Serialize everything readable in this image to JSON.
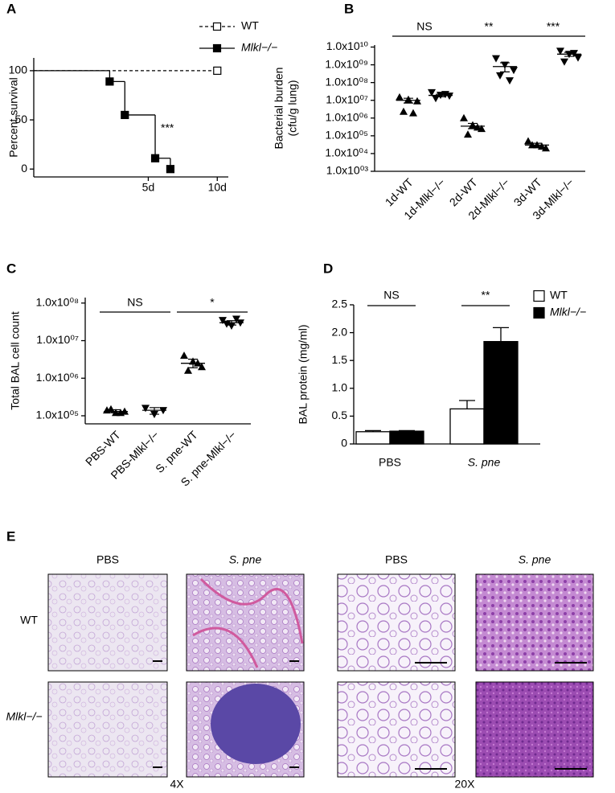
{
  "chart_data": [
    {
      "type": "line",
      "step": true,
      "panel": "A",
      "ylabel": "Percent survival",
      "xlim": [
        -3.3,
        10.8
      ],
      "xticks": [
        {
          "value": 5,
          "label": "5d"
        },
        {
          "value": 10,
          "label": "10d"
        }
      ],
      "ylim": [
        -8,
        113
      ],
      "yticks": [
        0,
        50,
        100
      ],
      "series": [
        {
          "name": "WT",
          "color": "#000000",
          "dash": true,
          "marker": "open-square",
          "x": [
            -3.3,
            10
          ],
          "values": [
            100,
            100
          ]
        },
        {
          "name": "Mlkl−/−",
          "color": "#000000",
          "dash": false,
          "marker": "filled-square",
          "x": [
            -3.3,
            2.2,
            3.3,
            5.5,
            6.6
          ],
          "values": [
            100,
            89,
            55,
            11,
            0
          ]
        }
      ],
      "annotations": [
        "***"
      ]
    },
    {
      "type": "dot",
      "log": true,
      "panel": "B",
      "ylabel": [
        "Bacterial burden",
        "(cfu/g lung)"
      ],
      "ylim": [
        1000,
        13000000000
      ],
      "yticks": [
        {
          "value": 1000,
          "label": "1.0x10⁰³"
        },
        {
          "value": 10000,
          "label": "1.0x10⁰⁴"
        },
        {
          "value": 100000,
          "label": "1.0x10⁰⁵"
        },
        {
          "value": 1000000,
          "label": "1.0x10⁰⁶"
        },
        {
          "value": 10000000,
          "label": "1.0x10⁰⁷"
        },
        {
          "value": 100000000,
          "label": "1.0x10⁰⁸"
        },
        {
          "value": 1000000000,
          "label": "1.0x10⁰⁹"
        },
        {
          "value": 10000000000,
          "label": "1.0x10¹⁰"
        }
      ],
      "categories": [
        "1d-WT",
        "1d-Mlkl−/−",
        "2d-WT",
        "2d-Mlkl−/−",
        "3d-WT",
        "3d-Mlkl−/−"
      ],
      "markers": [
        "triangle-up",
        "triangle-down",
        "triangle-up",
        "triangle-down",
        "triangle-up",
        "triangle-down"
      ],
      "values": [
        [
          15000000,
          11000000,
          9000000,
          2300000,
          1900000
        ],
        [
          28000000,
          20000000,
          18000000,
          13000000,
          22000000
        ],
        [
          1000000,
          400000,
          250000,
          120000,
          300000
        ],
        [
          2300000000,
          1000000000,
          500000000,
          250000000,
          130000000
        ],
        [
          50000,
          30000,
          20000,
          30000,
          25000
        ],
        [
          6000000000,
          4000000000,
          2500000000,
          1500000000,
          4500000000
        ]
      ],
      "means": [
        10000000,
        19000000,
        350000,
        800000000,
        30000,
        4000000000
      ],
      "err_low": [
        7000000,
        16000000,
        250000,
        400000000,
        23000,
        3000000000
      ],
      "err_high": [
        13000000,
        22000000,
        500000,
        1300000000,
        38000,
        5000000000
      ],
      "annotations": [
        "NS",
        "**",
        "***"
      ]
    },
    {
      "type": "dot",
      "log": true,
      "panel": "C",
      "ylabel": "Total BAL cell count",
      "ylim": [
        61000,
        140000000
      ],
      "yticks": [
        {
          "value": 100000,
          "label": "1.0x10⁰⁵"
        },
        {
          "value": 1000000,
          "label": "1.0x10⁰⁶"
        },
        {
          "value": 10000000,
          "label": "1.0x10⁰⁷"
        },
        {
          "value": 100000000,
          "label": "1.0x10⁰⁸"
        }
      ],
      "categories": [
        "PBS-WT",
        "PBS-Mlkl−/−",
        "S. pne-WT",
        "S. pne-Mlkl−/−"
      ],
      "markers": [
        "triangle-up",
        "triangle-down",
        "triangle-up",
        "triangle-down"
      ],
      "values": [
        [
          140000,
          120000,
          130000,
          150000,
          120000
        ],
        [
          160000,
          110000,
          140000
        ],
        [
          4000000,
          2800000,
          2000000,
          1600000,
          2500000
        ],
        [
          35000000,
          25000000,
          30000000,
          28000000,
          38000000
        ]
      ],
      "means": [
        130000,
        140000,
        2500000,
        30000000
      ],
      "err_low": [
        120000,
        110000,
        1900000,
        26000000
      ],
      "err_high": [
        145000,
        165000,
        3200000,
        34000000
      ],
      "annotations": [
        "NS",
        "*"
      ]
    },
    {
      "type": "bar",
      "panel": "D",
      "ylabel": "BAL protein (mg/ml)",
      "ylim": [
        0,
        2.5
      ],
      "yticks": [
        0,
        0.5,
        {
          "value": 1,
          "label": "1.0"
        },
        1.5,
        {
          "value": 2,
          "label": "2.0"
        },
        2.5
      ],
      "categories": [
        "PBS",
        "S. pne"
      ],
      "series": [
        {
          "name": "WT",
          "color": "#ffffff",
          "values": [
            0.22,
            0.63
          ],
          "errors": [
            0.02,
            0.15
          ]
        },
        {
          "name": "Mlkl−/−",
          "color": "#000000",
          "values": [
            0.23,
            1.84
          ],
          "errors": [
            0.01,
            0.25
          ]
        }
      ],
      "annotations": [
        "NS",
        "**"
      ]
    }
  ],
  "panel_e": {
    "label": "E",
    "columns": [
      "PBS",
      "S. pne",
      "PBS",
      "S. pne"
    ],
    "rows": [
      "WT",
      "Mlkl−/−"
    ],
    "magnifications": [
      "4X",
      "20X"
    ]
  }
}
